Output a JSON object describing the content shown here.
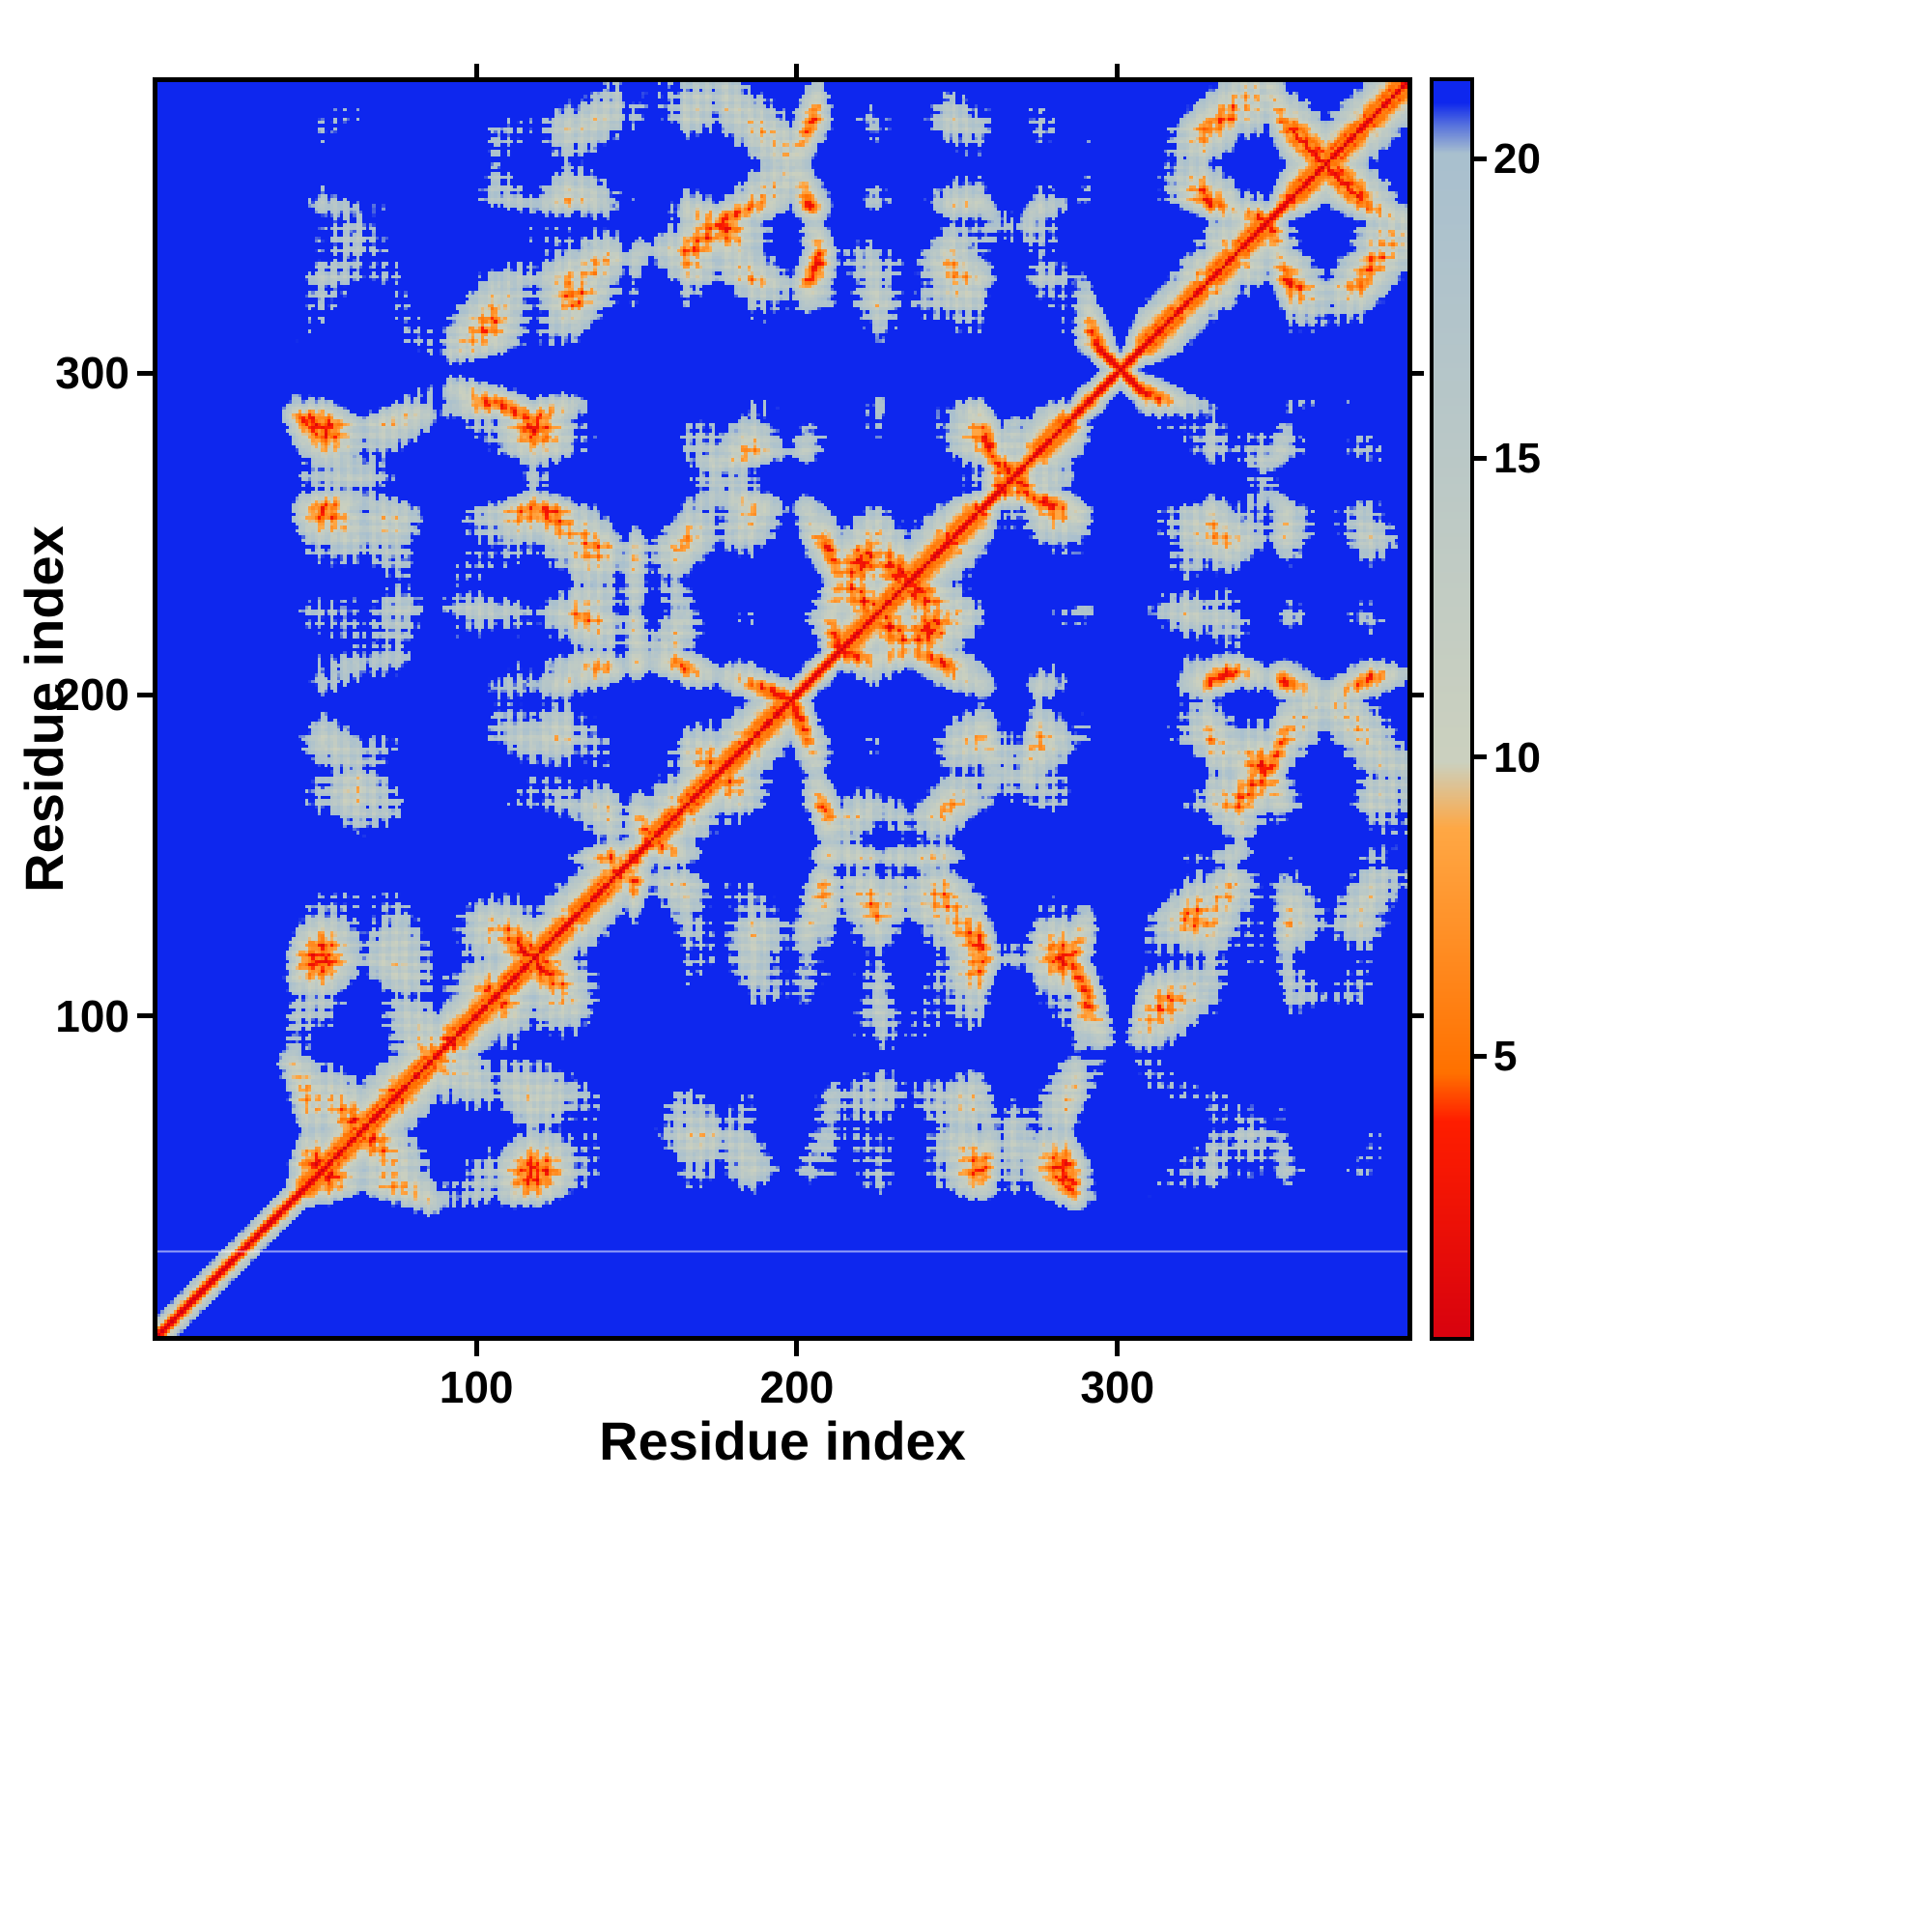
{
  "figure": {
    "background_color": "#ffffff"
  },
  "chart_data": {
    "type": "heatmap",
    "title": "",
    "xlabel": "Residue index",
    "ylabel": "Residue index",
    "x_ticks": [
      100,
      200,
      300
    ],
    "y_ticks": [
      100,
      200,
      300
    ],
    "x_range": [
      1,
      390
    ],
    "y_range": [
      1,
      390
    ],
    "n_residues": 390,
    "grid": false,
    "legend": "none",
    "description": "Symmetric residue-residue pairwise distance map (~390x390). Red main diagonal (d ~0-4), orange near-diagonal secondary-structure streaks (~4-9), pale grey-green contact clusters (~9-20) concentrated near the diagonal and in off-diagonal domain blobs, deep blue background for distances above ~21 (clipped). The first ~40 N-terminal residues form a thin isolated diagonal tail in the lower-left corner; a faint white horizontal artifact line crosses the full map near residue 27.",
    "colormap": {
      "stops": [
        {
          "v": 0.0,
          "color": "#d50010"
        },
        {
          "v": 3.9,
          "color": "#ff1e00"
        },
        {
          "v": 4.7,
          "color": "#ff7100"
        },
        {
          "v": 8.8,
          "color": "#ffa845"
        },
        {
          "v": 9.9,
          "color": "#ccd1bf"
        },
        {
          "v": 20.1,
          "color": "#a9c0cf"
        },
        {
          "v": 20.55,
          "color": "#5b76dd"
        },
        {
          "v": 20.95,
          "color": "#0e27ee"
        },
        {
          "v": 25.0,
          "color": "#0e27ee"
        }
      ],
      "background_color": "#0e27ee"
    },
    "colorbar": {
      "position": "right",
      "ticks": [
        5,
        10,
        15,
        20
      ],
      "vmin": 0.3,
      "vmax": 21.3
    },
    "artifact_line_residue": 27
  }
}
